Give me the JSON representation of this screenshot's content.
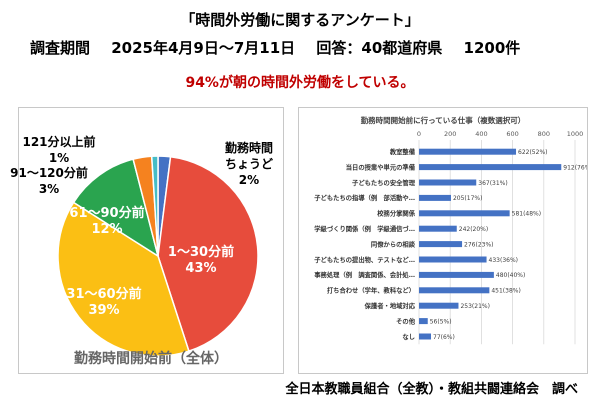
{
  "header": {
    "title": "「時間外労働に関するアンケート」",
    "period_label": "調査期間",
    "period_value": "2025年4月9日～7月11日",
    "response_label": "回答：40都道府県",
    "response_count": "1200件",
    "headline": "94%が朝の時間外労働をしている。"
  },
  "footer": {
    "source": "全日本教職員組合（全教）・教組共闘連絡会　調べ"
  },
  "colors": {
    "headline": "#c00000",
    "bar": "#4472c4",
    "grid": "#d9d9d9"
  },
  "chart_data": [
    {
      "type": "pie",
      "title": "勤務時間開始前（全体）",
      "slices": [
        {
          "label": "勤務時間ちょうど",
          "display_lines": [
            "勤務時間",
            "ちょうど",
            "2%"
          ],
          "value": 2,
          "color": "#4472c4"
        },
        {
          "label": "1～30分前",
          "display_lines": [
            "1～30分前",
            "43%"
          ],
          "value": 43,
          "color": "#e74c3c"
        },
        {
          "label": "31～60分前",
          "display_lines": [
            "31～60分前",
            "39%"
          ],
          "value": 39,
          "color": "#fbbf14"
        },
        {
          "label": "61～90分前",
          "display_lines": [
            "61～90分前",
            "12%"
          ],
          "value": 12,
          "color": "#2aa44f"
        },
        {
          "label": "91～120分前",
          "display_lines": [
            "91～120分前",
            "3%"
          ],
          "value": 3,
          "color": "#f5821f"
        },
        {
          "label": "121分以上前",
          "display_lines": [
            "121分以上前",
            "1%"
          ],
          "value": 1,
          "color": "#46bdc6"
        }
      ]
    },
    {
      "type": "bar",
      "orientation": "horizontal",
      "title": "勤務時間開始前に行っている仕事（複数選択可）",
      "xlim": [
        0,
        1000
      ],
      "xticks": [
        "0",
        "200",
        "400",
        "600",
        "800",
        "1000"
      ],
      "grid": true,
      "categories": [
        "教室整備",
        "当日の授業や単元の準備",
        "子どもたちの安全管理",
        "子どもたちの指導（例　部活動や…",
        "校務分掌関係",
        "学級づくり関係（例　学級通信づ…",
        "同僚からの相談",
        "子どもたちの提出物、テストなど…",
        "事務処理（例　調査関係、会計処…",
        "打ち合わせ（学年、教科など）",
        "保護者・地域対応",
        "その他",
        "なし"
      ],
      "values": [
        622,
        912,
        367,
        205,
        581,
        242,
        276,
        433,
        480,
        451,
        253,
        56,
        77
      ],
      "data_labels": [
        "622(52%)",
        "912(76%)",
        "367(31%)",
        "205(17%)",
        "581(48%)",
        "242(20%)",
        "276(23%)",
        "433(36%)",
        "480(40%)",
        "451(38%)",
        "253(21%)",
        "56(5%)",
        "77(6%)"
      ]
    }
  ]
}
